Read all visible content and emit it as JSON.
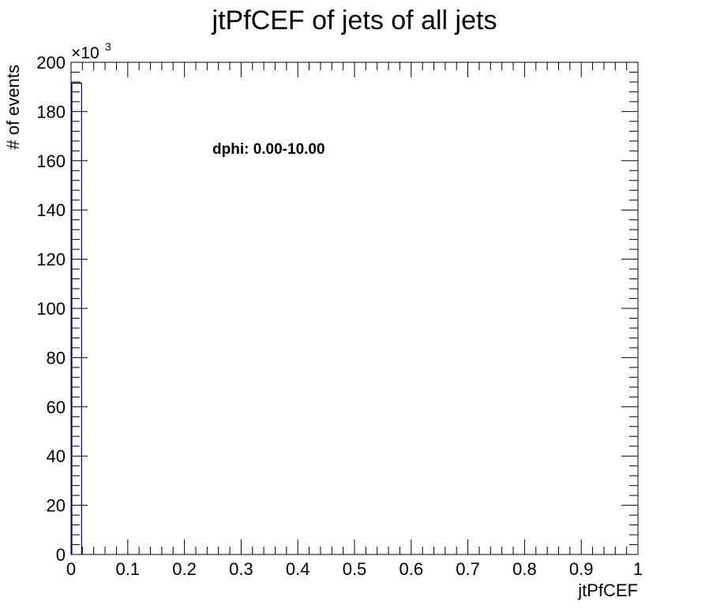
{
  "chart_data": {
    "type": "bar",
    "title": "jtPfCEF of jets of all jets",
    "xlabel": "jtPfCEF",
    "ylabel": "# of events",
    "y_multiplier_base": "×10",
    "y_multiplier_exp": "3",
    "annotation": "dphi: 0.00-10.00",
    "xlim": [
      0,
      1
    ],
    "ylim": [
      0,
      200
    ],
    "x_ticks": [
      0,
      0.1,
      0.2,
      0.3,
      0.4,
      0.5,
      0.6,
      0.7,
      0.8,
      0.9,
      1
    ],
    "x_tick_labels": [
      "0",
      "0.1",
      "0.2",
      "0.3",
      "0.4",
      "0.5",
      "0.6",
      "0.7",
      "0.8",
      "0.9",
      "1"
    ],
    "y_ticks": [
      0,
      20,
      40,
      60,
      80,
      100,
      120,
      140,
      160,
      180,
      200
    ],
    "y_tick_labels": [
      "0",
      "20",
      "40",
      "60",
      "80",
      "100",
      "120",
      "140",
      "160",
      "180",
      "200"
    ],
    "bins": [
      {
        "x_low": 0.0,
        "x_high": 0.02,
        "value": 191.5
      }
    ],
    "line_color": "#000099",
    "grid": false
  }
}
